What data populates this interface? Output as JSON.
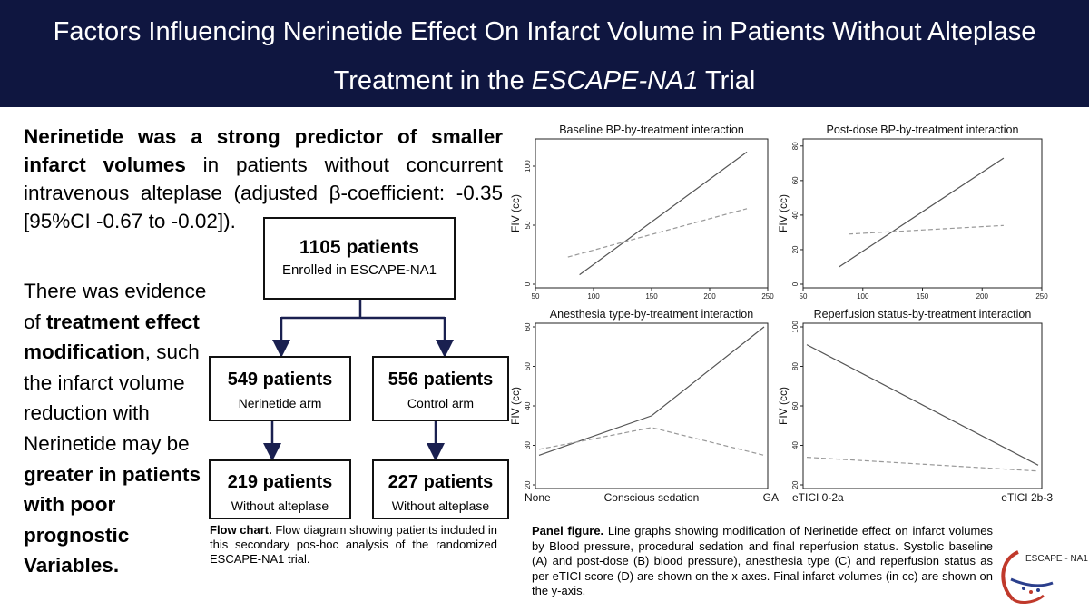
{
  "header": {
    "title_line1": "Factors Influencing Nerinetide Effect On Infarct Volume in Patients Without Alteplase",
    "title_line2_pre": "Treatment in the ",
    "title_line2_italic": "ESCAPE-NA1",
    "title_line2_post": " Trial"
  },
  "summary": {
    "bold": "Nerinetide was a strong predictor of smaller infarct volumes",
    "rest": " in patients without concurrent intravenous alteplase (adjusted β-coefficient: -0.35 [95%CI -0.67 to -0.02])."
  },
  "modification": {
    "t1": "There was evidence of ",
    "b1": "treatment effect modification",
    "t2": ", such the infarct volume reduction with Nerinetide may be ",
    "b2": "greater in patients with poor prognostic Variables."
  },
  "flow": {
    "total": {
      "count": "1105 patients",
      "label": "Enrolled in ESCAPE-NA1"
    },
    "left": {
      "count": "549 patients",
      "label": "Nerinetide arm"
    },
    "right": {
      "count": "556 patients",
      "label": "Control arm"
    },
    "left_sub": {
      "count": "219 patients",
      "label": "Without alteplase"
    },
    "right_sub": {
      "count": "227 patients",
      "label": "Without alteplase"
    },
    "caption_bold": "Flow chart.",
    "caption_text": " Flow diagram showing patients included in this secondary pos-hoc analysis of the randomized ESCAPE-NA1 trial."
  },
  "panel_caption": {
    "bold": "Panel figure.",
    "text": " Line graphs showing modification of Nerinetide effect on infarct volumes by Blood pressure, procedural sedation and final reperfusion status. Systolic baseline (A) and post-dose (B) blood pressure), anesthesia type (C) and reperfusion status as per eTICI score (D) are shown on the x-axes.  Final infarct volumes (in cc) are shown on the y-axis."
  },
  "logo_text": "ESCAPE - NA1",
  "colors": {
    "banner": "#0f1640",
    "solid_line": "#555555",
    "dashed_line": "#999999"
  },
  "chart_data": [
    {
      "type": "line",
      "title": "Baseline BP-by-treatment interaction",
      "xlabel": "",
      "ylabel": "FIV (cc)",
      "xlim": [
        50,
        250
      ],
      "ylim": [
        0,
        120
      ],
      "xticks": [
        50,
        100,
        150,
        200,
        250
      ],
      "yticks": [
        0,
        50,
        100
      ],
      "series": [
        {
          "name": "solid",
          "style": "solid",
          "x": [
            88,
            232
          ],
          "y": [
            8,
            112
          ]
        },
        {
          "name": "dashed",
          "style": "dashed",
          "x": [
            78,
            232
          ],
          "y": [
            23,
            64
          ]
        }
      ]
    },
    {
      "type": "line",
      "title": "Post-dose BP-by-treatment interaction",
      "xlabel": "",
      "ylabel": "FIV (cc)",
      "xlim": [
        50,
        250
      ],
      "ylim": [
        0,
        82
      ],
      "xticks": [
        50,
        100,
        150,
        200,
        250
      ],
      "yticks": [
        0,
        20,
        40,
        60,
        80
      ],
      "series": [
        {
          "name": "solid",
          "style": "solid",
          "x": [
            80,
            218
          ],
          "y": [
            10,
            73
          ]
        },
        {
          "name": "dashed",
          "style": "dashed",
          "x": [
            88,
            218
          ],
          "y": [
            29,
            34
          ]
        }
      ]
    },
    {
      "type": "line",
      "title": "Anesthesia type-by-treatment interaction",
      "xlabel": "",
      "ylabel": "FIV (cc)",
      "categories": [
        "None",
        "Conscious sedation",
        "GA"
      ],
      "ylim": [
        20,
        60
      ],
      "yticks": [
        20,
        30,
        40,
        50,
        60
      ],
      "series": [
        {
          "name": "solid",
          "style": "solid",
          "values": [
            27.5,
            37.5,
            60
          ]
        },
        {
          "name": "dashed",
          "style": "dashed",
          "values": [
            29,
            34.5,
            27.5
          ]
        }
      ]
    },
    {
      "type": "line",
      "title": "Reperfusion status-by-treatment interaction",
      "xlabel": "",
      "ylabel": "FIV (cc)",
      "categories": [
        "eTICI 0-2a",
        "eTICI 2b-3"
      ],
      "ylim": [
        20,
        100
      ],
      "yticks": [
        20,
        40,
        60,
        80,
        100
      ],
      "series": [
        {
          "name": "solid",
          "style": "solid",
          "values": [
            91,
            30
          ]
        },
        {
          "name": "dashed",
          "style": "dashed",
          "values": [
            34,
            27
          ]
        }
      ]
    }
  ]
}
